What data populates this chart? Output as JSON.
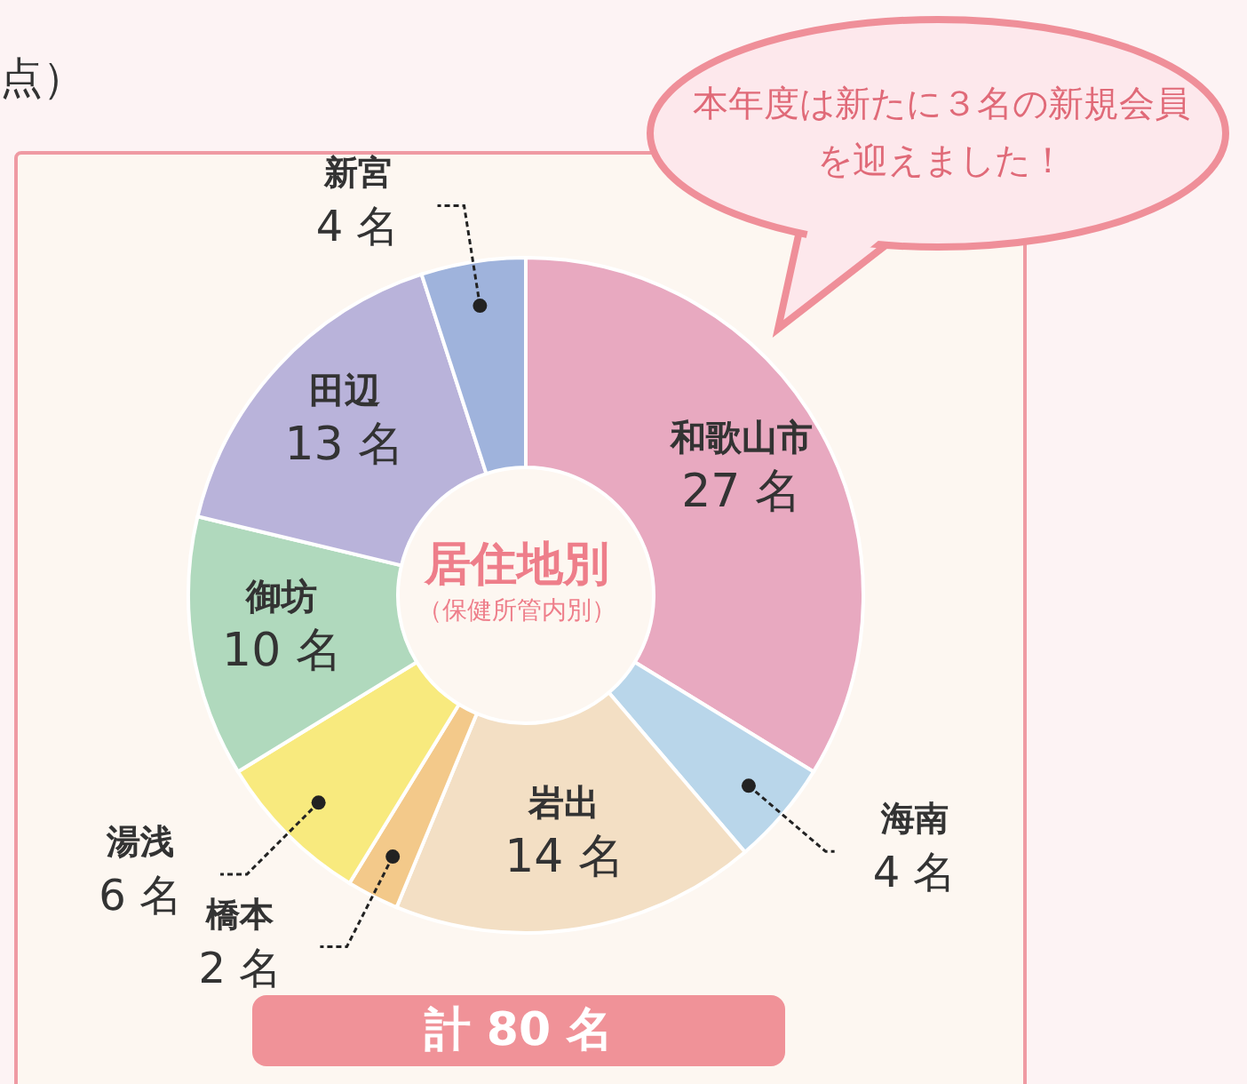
{
  "chart_data": {
    "type": "donut",
    "title": "居住地別",
    "subtitle": "（保健所管内別）",
    "categories": [
      "和歌山市",
      "海南",
      "岩出",
      "橋本",
      "湯浅",
      "御坊",
      "田辺",
      "新宮"
    ],
    "values": [
      27,
      4,
      14,
      2,
      6,
      10,
      13,
      4
    ],
    "value_labels": [
      "27 名",
      "4 名",
      "14 名",
      "2 名",
      "6 名",
      "10 名",
      "13 名",
      "4 名"
    ],
    "colors": [
      "#e8a9c0",
      "#b9d6ea",
      "#f3dfc4",
      "#f3c98a",
      "#f8ea7e",
      "#b0d9bd",
      "#b9b3da",
      "#9fb3dc"
    ],
    "annotations": [
      "計 80 名",
      "本年度は新たに３名の新規会員を迎えました！",
      "点）"
    ],
    "legend": false
  }
}
